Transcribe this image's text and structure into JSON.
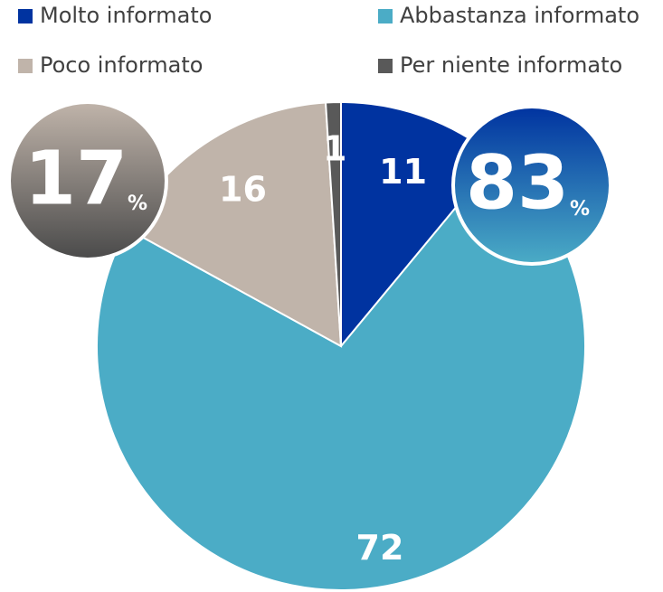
{
  "chart_data": {
    "type": "pie",
    "categories": [
      "Molto informato",
      "Abbastanza informato",
      "Poco informato",
      "Per niente informato"
    ],
    "values": [
      11,
      72,
      16,
      1
    ],
    "colors": [
      "#0033a0",
      "#4bacc6",
      "#c0b4aa",
      "#595959"
    ],
    "legend": "top",
    "annotations": [
      {
        "text": "83",
        "unit": "%"
      },
      {
        "text": "17",
        "unit": "%"
      }
    ]
  }
}
